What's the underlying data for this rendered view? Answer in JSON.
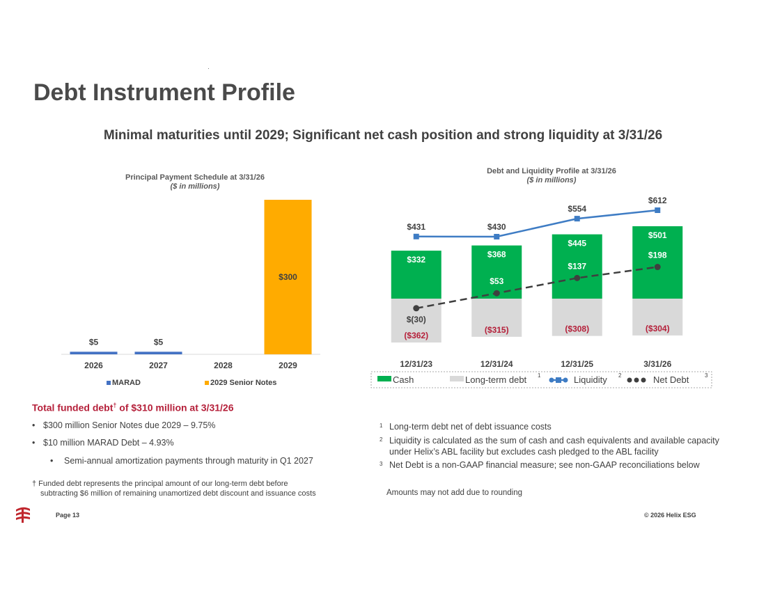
{
  "slide": {
    "title": "Debt Instrument Profile",
    "subtitle": "Minimal maturities until 2029; Significant net cash position and strong liquidity at 3/31/26",
    "page_label": "Page 13",
    "copyright": "© 2026 Helix ESG"
  },
  "colors": {
    "marad": "#4472c4",
    "senior_notes": "#ffab00",
    "cash": "#00b050",
    "long_term_debt": "#d9d9d9",
    "liquidity": "#3e7cc4",
    "net_debt": "#3f3f3f",
    "debt_label": "#b5203a",
    "logo": "#c0262d"
  },
  "chart_data": [
    {
      "type": "bar",
      "title": "Principal Payment Schedule at 3/31/26",
      "subtitle": "($ in millions)",
      "categories": [
        "2026",
        "2027",
        "2028",
        "2029"
      ],
      "series": [
        {
          "name": "MARAD",
          "values": [
            5,
            5,
            0,
            0
          ],
          "labels": [
            "$5",
            "$5",
            "",
            ""
          ]
        },
        {
          "name": "2029 Senior Notes",
          "values": [
            0,
            0,
            0,
            300
          ],
          "labels": [
            "",
            "",
            "",
            "$300"
          ]
        }
      ],
      "legend_position": "bottom",
      "ylim": [
        0,
        300
      ]
    },
    {
      "type": "bar",
      "title": "Debt and Liquidity Profile at 3/31/26",
      "subtitle": "($ in millions)",
      "categories": [
        "12/31/23",
        "12/31/24",
        "12/31/25",
        "3/31/26"
      ],
      "series": [
        {
          "name": "Cash",
          "kind": "bar",
          "values": [
            332,
            368,
            445,
            501
          ],
          "labels": [
            "$332",
            "$368",
            "$445",
            "$501"
          ]
        },
        {
          "name": "Long-term debt",
          "kind": "bar",
          "footnote": "1",
          "values": [
            -362,
            -315,
            -308,
            -304
          ],
          "labels": [
            "($362)",
            "($315)",
            "($308)",
            "($304)"
          ]
        },
        {
          "name": "Liquidity",
          "kind": "line",
          "footnote": "2",
          "values": [
            431,
            430,
            554,
            612
          ],
          "labels": [
            "$431",
            "$430",
            "$554",
            "$612"
          ]
        },
        {
          "name": "Net Debt",
          "kind": "dashed-line",
          "footnote": "3",
          "values": [
            -30,
            53,
            137,
            198
          ],
          "labels": [
            "$(30)",
            "$53",
            "$137",
            "$198"
          ]
        }
      ],
      "legend_position": "bottom",
      "ylim": [
        -362,
        612
      ]
    }
  ],
  "funded_debt": {
    "heading": "Total funded debt",
    "heading_mark": "†",
    "heading_rest": " of $310 million at 3/31/26",
    "bullets": [
      "$300 million Senior Notes due 2029 – 9.75%",
      "$10 million MARAD Debt – 4.93%"
    ],
    "sub_bullet": "Semi-annual amortization payments through maturity in Q1 2027",
    "dagger_note_line1": "† Funded debt represents the principal amount of our long-term debt before",
    "dagger_note_line2": "subtracting $6 million of remaining unamortized debt discount and issuance costs"
  },
  "footnotes": [
    {
      "num": "1",
      "lines": [
        "Long-term debt net of debt issuance costs"
      ]
    },
    {
      "num": "2",
      "lines": [
        "Liquidity is calculated as the sum of cash and cash equivalents and available capacity",
        "under Helix’s ABL facility but excludes cash pledged to the ABL facility"
      ]
    },
    {
      "num": "3",
      "lines": [
        "Net Debt is a non-GAAP financial measure; see non-GAAP reconciliations below"
      ]
    }
  ],
  "rounding_note": "Amounts may not add due to rounding"
}
